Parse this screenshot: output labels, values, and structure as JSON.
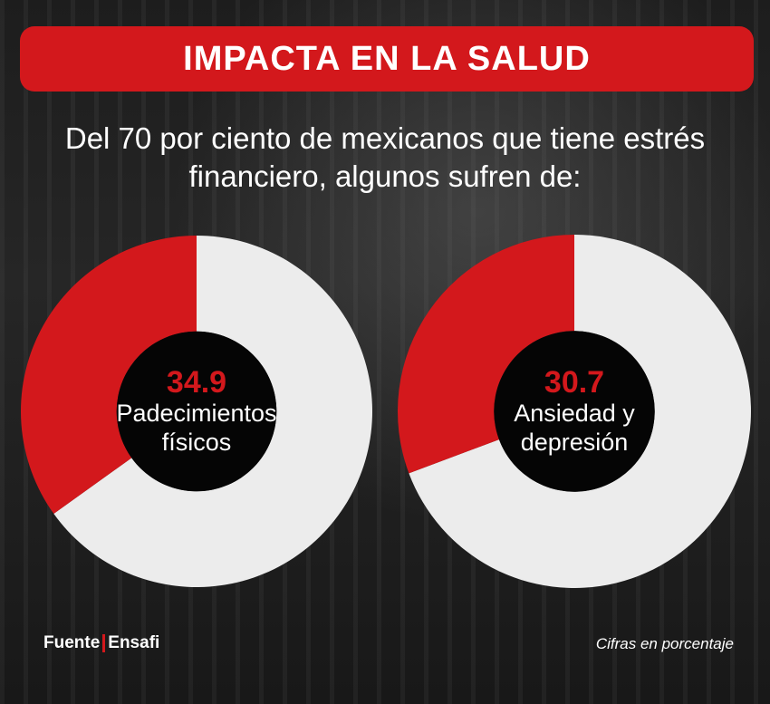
{
  "banner": {
    "title": "IMPACTA EN LA SALUD"
  },
  "subtitle": {
    "line1": "Del 70 por ciento de mexicanos que tiene estrés",
    "line2": "financiero, algunos sufren de:"
  },
  "footer": {
    "source_label": "Fuente",
    "source_name": "Ensafi",
    "note": "Cifras en porcentaje"
  },
  "colors": {
    "accent": "#d3181c",
    "remainder": "#ececec",
    "hole": "#050505"
  },
  "chart_data": [
    {
      "type": "pie",
      "values": [
        34.9
      ],
      "total": 100,
      "labels": [
        "Padecimientos físicos"
      ],
      "value_label": "34.9",
      "center_label_line1": "Padecimientos",
      "center_label_line2": "físicos"
    },
    {
      "type": "pie",
      "values": [
        30.7
      ],
      "total": 100,
      "labels": [
        "Ansiedad y depresión"
      ],
      "value_label": "30.7",
      "center_label_line1": "Ansiedad y",
      "center_label_line2": "depresión"
    }
  ]
}
